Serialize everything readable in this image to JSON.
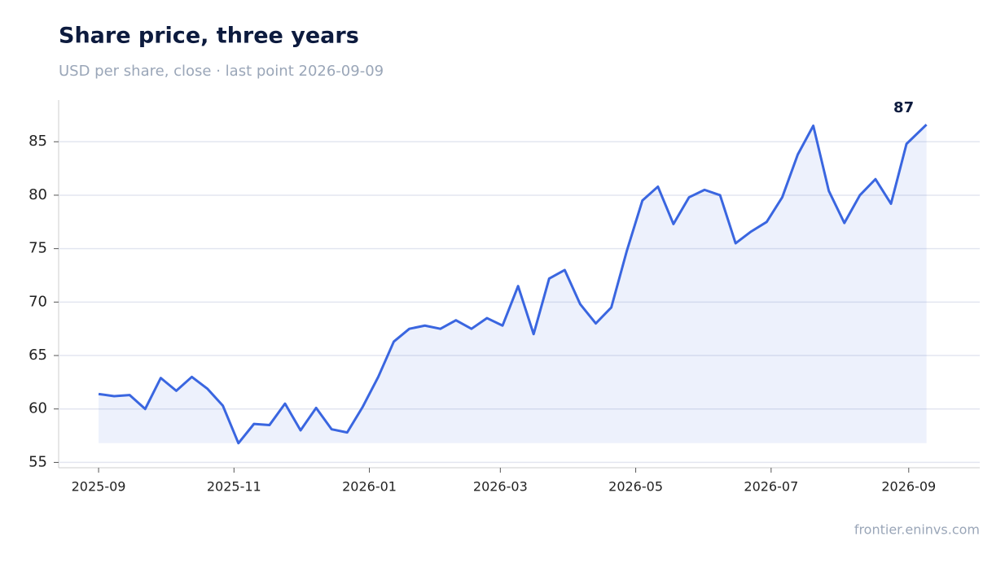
{
  "chart_data": {
    "type": "line",
    "title": "Share price, three years",
    "subtitle": "USD per share, close · last point 2026-09-09",
    "source": "frontier.eninvs.com",
    "x": [
      "2025-09-01",
      "2025-09-08",
      "2025-09-15",
      "2025-09-22",
      "2025-09-29",
      "2025-10-06",
      "2025-10-13",
      "2025-10-20",
      "2025-10-27",
      "2025-11-03",
      "2025-11-10",
      "2025-11-17",
      "2025-11-24",
      "2025-12-01",
      "2025-12-08",
      "2025-12-15",
      "2025-12-22",
      "2025-12-29",
      "2026-01-05",
      "2026-01-12",
      "2026-01-19",
      "2026-01-26",
      "2026-02-02",
      "2026-02-09",
      "2026-02-16",
      "2026-02-23",
      "2026-03-02",
      "2026-03-09",
      "2026-03-16",
      "2026-03-23",
      "2026-03-30",
      "2026-04-06",
      "2026-04-13",
      "2026-04-20",
      "2026-04-27",
      "2026-05-04",
      "2026-05-11",
      "2026-05-18",
      "2026-05-25",
      "2026-06-01",
      "2026-06-08",
      "2026-06-15",
      "2026-06-22",
      "2026-06-29",
      "2026-07-06",
      "2026-07-13",
      "2026-07-20",
      "2026-07-27",
      "2026-08-03",
      "2026-08-10",
      "2026-08-17",
      "2026-08-24",
      "2026-08-31",
      "2026-09-09"
    ],
    "series": [
      {
        "color": "#3a66e0",
        "values": [
          61.4,
          61.2,
          61.3,
          60.0,
          62.9,
          61.7,
          63.0,
          61.9,
          60.3,
          56.8,
          58.6,
          58.5,
          60.5,
          58.0,
          60.1,
          58.1,
          57.8,
          60.2,
          63.0,
          66.3,
          67.5,
          67.8,
          67.5,
          68.3,
          67.5,
          68.5,
          67.8,
          71.5,
          67.0,
          72.2,
          73.0,
          69.8,
          68.0,
          69.5,
          74.8,
          79.5,
          80.8,
          77.3,
          79.8,
          80.5,
          80.0,
          75.5,
          76.6,
          77.5,
          79.8,
          83.8,
          86.5,
          80.4,
          77.4,
          80.0,
          81.5,
          79.2,
          84.8,
          86.6
        ],
        "value_labels": [
          null,
          null,
          null,
          null,
          null,
          null,
          null,
          null,
          null,
          null,
          null,
          null,
          null,
          null,
          null,
          null,
          null,
          null,
          null,
          null,
          null,
          null,
          null,
          null,
          null,
          null,
          null,
          null,
          null,
          null,
          null,
          null,
          null,
          null,
          null,
          null,
          null,
          null,
          null,
          null,
          null,
          null,
          null,
          null,
          null,
          null,
          null,
          null,
          null,
          null,
          null,
          null,
          null,
          "87"
        ]
      }
    ],
    "xlim": [
      "2025-08-14",
      "2026-10-03"
    ],
    "xticks": [
      "2025-09",
      "2025-11",
      "2026-01",
      "2026-03",
      "2026-05",
      "2026-07",
      "2026-09"
    ],
    "ylim": [
      54.5,
      88.9
    ],
    "yticks": [
      55,
      60,
      65,
      70,
      75,
      80,
      85
    ],
    "grid": true
  }
}
